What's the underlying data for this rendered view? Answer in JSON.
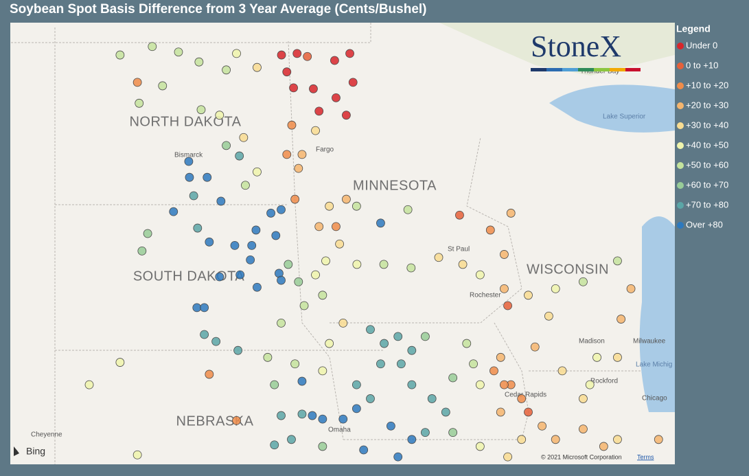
{
  "title": "Soybean Spot Basis Difference from 3 Year Average (Cents/Bushel)",
  "logo": "StoneX",
  "bing": "Bing",
  "copyright": "© 2021 Microsoft Corporation",
  "terms": "Terms",
  "legend": {
    "title": "Legend",
    "items": [
      {
        "label": "Under 0",
        "color": "#d7262b"
      },
      {
        "label": "0 to +10",
        "color": "#e5603a"
      },
      {
        "label": "+10 to +20",
        "color": "#ef8c4a"
      },
      {
        "label": "+20 to +30",
        "color": "#f5b56e"
      },
      {
        "label": "+30 to +40",
        "color": "#f8dc92"
      },
      {
        "label": "+40 to +50",
        "color": "#eff4ad"
      },
      {
        "label": "+50 to +60",
        "color": "#c4e39d"
      },
      {
        "label": "+60 to +70",
        "color": "#98cc98"
      },
      {
        "label": "+70 to +80",
        "color": "#5ba6a7"
      },
      {
        "label": "Over +80",
        "color": "#2d79be"
      }
    ]
  },
  "map": {
    "labels": [
      "NORTH DAKOTA",
      "SOUTH DAKOTA",
      "MINNESOTA",
      "WISCONSIN",
      "NEBRASKA",
      "Bismarck",
      "Fargo",
      "St Paul",
      "Rochester",
      "Madison",
      "Milwaukee",
      "Rockford",
      "Chicago",
      "Cedar Rapids",
      "Omaha",
      "Cheyenne",
      "Lake Superior",
      "Thunder Bay",
      "Lake Michig"
    ],
    "xlim": [
      -105.37,
      -86.6
    ],
    "ylim": [
      40.72,
      49.6
    ],
    "points": [
      [
        -97.71,
        48.95,
        0
      ],
      [
        -97.27,
        48.98,
        0
      ],
      [
        -96.21,
        48.84,
        0
      ],
      [
        -95.78,
        48.98,
        0
      ],
      [
        -95.69,
        48.4,
        0
      ],
      [
        -96.81,
        48.27,
        0
      ],
      [
        -97.37,
        48.29,
        0
      ],
      [
        -96.17,
        48.09,
        0
      ],
      [
        -96.65,
        47.82,
        0
      ],
      [
        -95.88,
        47.74,
        0
      ],
      [
        -97.56,
        48.61,
        0
      ],
      [
        -96.98,
        48.92,
        1
      ],
      [
        -97.42,
        47.54,
        2
      ],
      [
        -97.13,
        46.95,
        3
      ],
      [
        -97.56,
        46.95,
        2
      ],
      [
        -97.33,
        46.05,
        2
      ],
      [
        -97.23,
        46.67,
        3
      ],
      [
        -96.75,
        47.43,
        4
      ],
      [
        -102.27,
        48.95,
        6
      ],
      [
        -101.36,
        49.12,
        6
      ],
      [
        -100.62,
        49.01,
        6
      ],
      [
        -100.04,
        48.81,
        6
      ],
      [
        -99.27,
        48.65,
        6
      ],
      [
        -101.73,
        47.98,
        6
      ],
      [
        -101.07,
        48.33,
        6
      ],
      [
        -99.98,
        47.85,
        6
      ],
      [
        -101.78,
        48.4,
        2
      ],
      [
        -98.98,
        48.98,
        5
      ],
      [
        -98.4,
        48.7,
        4
      ],
      [
        -99.46,
        47.74,
        5
      ],
      [
        -98.78,
        47.29,
        4
      ],
      [
        -99.27,
        47.13,
        7
      ],
      [
        -98.9,
        46.92,
        8
      ],
      [
        -100.33,
        46.81,
        9
      ],
      [
        -99.81,
        46.49,
        9
      ],
      [
        -100.31,
        46.49,
        9
      ],
      [
        -99.42,
        46.01,
        9
      ],
      [
        -100.19,
        46.12,
        8
      ],
      [
        -98.4,
        46.6,
        5
      ],
      [
        -98.73,
        46.33,
        6
      ],
      [
        -100.76,
        45.8,
        9
      ],
      [
        -101.49,
        45.36,
        7
      ],
      [
        -101.65,
        45.01,
        7
      ],
      [
        -100.08,
        45.47,
        8
      ],
      [
        -99.75,
        45.19,
        9
      ],
      [
        -99.03,
        45.12,
        9
      ],
      [
        -98.55,
        45.12,
        9
      ],
      [
        -98.43,
        45.43,
        9
      ],
      [
        -97.87,
        45.32,
        9
      ],
      [
        -98.59,
        44.83,
        9
      ],
      [
        -99.46,
        44.49,
        9
      ],
      [
        -98.88,
        44.53,
        9
      ],
      [
        -98.4,
        44.28,
        9
      ],
      [
        -97.78,
        44.56,
        9
      ],
      [
        -97.72,
        44.42,
        9
      ],
      [
        -100.1,
        43.87,
        9
      ],
      [
        -99.89,
        43.87,
        9
      ],
      [
        -99.89,
        43.33,
        8
      ],
      [
        -99.56,
        43.19,
        8
      ],
      [
        -98.94,
        43.01,
        8
      ],
      [
        -98.01,
        45.77,
        9
      ],
      [
        -97.72,
        45.84,
        9
      ],
      [
        -97.52,
        44.74,
        7
      ],
      [
        -97.23,
        44.39,
        7
      ],
      [
        -97.07,
        43.91,
        6
      ],
      [
        -96.75,
        44.53,
        5
      ],
      [
        -96.55,
        44.12,
        6
      ],
      [
        -96.07,
        45.15,
        4
      ],
      [
        -95.58,
        44.74,
        5
      ],
      [
        -96.36,
        45.91,
        4
      ],
      [
        -95.88,
        46.05,
        3
      ],
      [
        -96.65,
        45.5,
        3
      ],
      [
        -96.17,
        45.5,
        2
      ],
      [
        -95.59,
        45.91,
        6
      ],
      [
        -94.91,
        45.57,
        9
      ],
      [
        -94.14,
        45.84,
        6
      ],
      [
        -92.68,
        45.73,
        1
      ],
      [
        -91.81,
        45.43,
        2
      ],
      [
        -91.23,
        45.77,
        3
      ],
      [
        -91.42,
        44.94,
        3
      ],
      [
        -94.82,
        44.74,
        6
      ],
      [
        -94.05,
        44.67,
        6
      ],
      [
        -93.27,
        44.88,
        4
      ],
      [
        -92.59,
        44.74,
        4
      ],
      [
        -92.1,
        44.53,
        5
      ],
      [
        -91.42,
        44.25,
        3
      ],
      [
        -91.32,
        43.91,
        1
      ],
      [
        -90.74,
        44.12,
        4
      ],
      [
        -89.97,
        44.25,
        5
      ],
      [
        -89.19,
        44.39,
        6
      ],
      [
        -88.22,
        44.81,
        6
      ],
      [
        -87.84,
        44.25,
        3
      ],
      [
        -88.12,
        43.64,
        3
      ],
      [
        -90.16,
        43.7,
        4
      ],
      [
        -95.2,
        43.43,
        8
      ],
      [
        -94.81,
        43.15,
        8
      ],
      [
        -94.42,
        43.29,
        8
      ],
      [
        -94.03,
        43.01,
        8
      ],
      [
        -93.65,
        43.29,
        7
      ],
      [
        -94.91,
        42.74,
        8
      ],
      [
        -94.33,
        42.74,
        8
      ],
      [
        -95.59,
        42.32,
        8
      ],
      [
        -95.2,
        42.04,
        8
      ],
      [
        -94.03,
        42.32,
        8
      ],
      [
        -93.46,
        42.04,
        8
      ],
      [
        -93.07,
        41.77,
        8
      ],
      [
        -94.62,
        41.49,
        9
      ],
      [
        -95.97,
        41.63,
        9
      ],
      [
        -95.59,
        41.84,
        9
      ],
      [
        -96.55,
        41.63,
        9
      ],
      [
        -97.13,
        41.73,
        8
      ],
      [
        -96.84,
        41.7,
        9
      ],
      [
        -97.72,
        41.7,
        8
      ],
      [
        -97.91,
        41.11,
        8
      ],
      [
        -97.43,
        41.22,
        8
      ],
      [
        -96.55,
        41.08,
        7
      ],
      [
        -95.39,
        41.01,
        9
      ],
      [
        -94.42,
        40.87,
        9
      ],
      [
        -93.65,
        41.36,
        8
      ],
      [
        -92.87,
        41.36,
        7
      ],
      [
        -94.03,
        41.22,
        9
      ],
      [
        -92.87,
        42.46,
        7
      ],
      [
        -92.29,
        42.74,
        6
      ],
      [
        -92.48,
        43.15,
        6
      ],
      [
        -92.1,
        42.32,
        5
      ],
      [
        -96.36,
        43.15,
        5
      ],
      [
        -95.97,
        43.56,
        4
      ],
      [
        -96.55,
        42.6,
        5
      ],
      [
        -97.33,
        42.74,
        6
      ],
      [
        -97.91,
        42.32,
        7
      ],
      [
        -98.1,
        42.87,
        6
      ],
      [
        -91.71,
        42.6,
        2
      ],
      [
        -91.23,
        42.32,
        2
      ],
      [
        -91.52,
        42.87,
        3
      ],
      [
        -90.74,
        41.77,
        1
      ],
      [
        -90.93,
        42.04,
        2
      ],
      [
        -91.42,
        42.32,
        2
      ],
      [
        -91.52,
        41.77,
        3
      ],
      [
        -90.35,
        41.49,
        3
      ],
      [
        -89.97,
        41.22,
        3
      ],
      [
        -89.19,
        41.43,
        3
      ],
      [
        -88.61,
        41.08,
        3
      ],
      [
        -88.22,
        41.22,
        4
      ],
      [
        -87.06,
        41.22,
        3
      ],
      [
        -89.19,
        42.04,
        4
      ],
      [
        -89.78,
        42.6,
        4
      ],
      [
        -90.55,
        43.08,
        3
      ],
      [
        -88.8,
        42.87,
        5
      ],
      [
        -88.22,
        42.87,
        4
      ],
      [
        -89.0,
        42.32,
        5
      ],
      [
        -90.93,
        41.22,
        4
      ],
      [
        -92.1,
        41.08,
        5
      ],
      [
        -91.32,
        40.87,
        4
      ],
      [
        -99.75,
        42.53,
        2
      ],
      [
        -98.98,
        41.6,
        2
      ],
      [
        -103.14,
        42.32,
        5
      ],
      [
        -102.27,
        42.77,
        5
      ],
      [
        -101.78,
        40.91,
        5
      ],
      [
        -97.13,
        42.39,
        9
      ],
      [
        -97.72,
        43.56,
        6
      ],
      [
        -96.46,
        44.81,
        5
      ]
    ]
  }
}
